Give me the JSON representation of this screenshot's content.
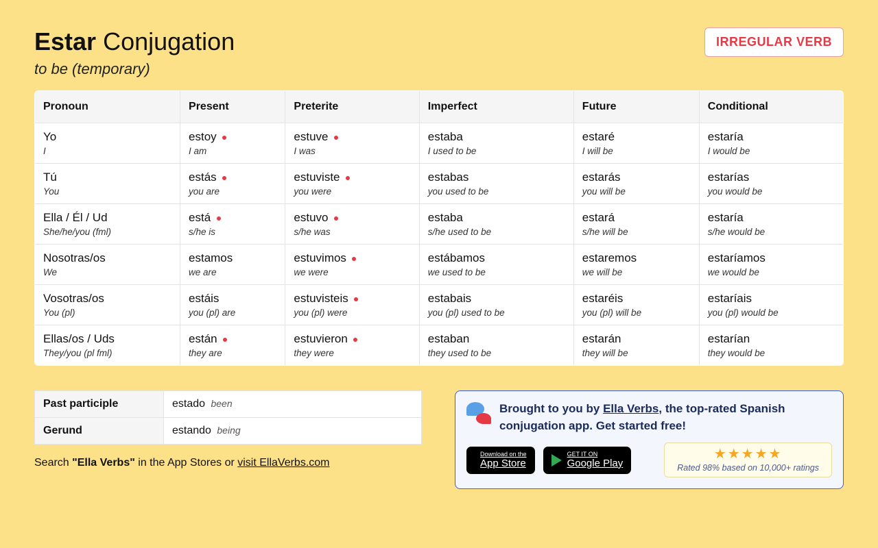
{
  "header": {
    "verb": "Estar",
    "suffix": " Conjugation",
    "subtitle": "to be (temporary)",
    "badge": "IRREGULAR VERB",
    "badge_color": "#e63946"
  },
  "columns": [
    "Pronoun",
    "Present",
    "Preterite",
    "Imperfect",
    "Future",
    "Conditional"
  ],
  "rows": [
    {
      "pronoun": {
        "sp": "Yo",
        "en": "I"
      },
      "cells": [
        {
          "sp": "estoy",
          "en": "I am",
          "irr": true
        },
        {
          "sp": "estuve",
          "en": "I was",
          "irr": true
        },
        {
          "sp": "estaba",
          "en": "I used to be",
          "irr": false
        },
        {
          "sp": "estaré",
          "en": "I will be",
          "irr": false
        },
        {
          "sp": "estaría",
          "en": "I would be",
          "irr": false
        }
      ]
    },
    {
      "pronoun": {
        "sp": "Tú",
        "en": "You"
      },
      "cells": [
        {
          "sp": "estás",
          "en": "you are",
          "irr": true
        },
        {
          "sp": "estuviste",
          "en": "you were",
          "irr": true
        },
        {
          "sp": "estabas",
          "en": "you used to be",
          "irr": false
        },
        {
          "sp": "estarás",
          "en": "you will be",
          "irr": false
        },
        {
          "sp": "estarías",
          "en": "you would be",
          "irr": false
        }
      ]
    },
    {
      "pronoun": {
        "sp": "Ella / Él / Ud",
        "en": "She/he/you (fml)"
      },
      "cells": [
        {
          "sp": "está",
          "en": "s/he is",
          "irr": true
        },
        {
          "sp": "estuvo",
          "en": "s/he was",
          "irr": true
        },
        {
          "sp": "estaba",
          "en": "s/he used to be",
          "irr": false
        },
        {
          "sp": "estará",
          "en": "s/he will be",
          "irr": false
        },
        {
          "sp": "estaría",
          "en": "s/he would be",
          "irr": false
        }
      ]
    },
    {
      "pronoun": {
        "sp": "Nosotras/os",
        "en": "We"
      },
      "cells": [
        {
          "sp": "estamos",
          "en": "we are",
          "irr": false
        },
        {
          "sp": "estuvimos",
          "en": "we were",
          "irr": true
        },
        {
          "sp": "estábamos",
          "en": "we used to be",
          "irr": false
        },
        {
          "sp": "estaremos",
          "en": "we will be",
          "irr": false
        },
        {
          "sp": "estaríamos",
          "en": "we would be",
          "irr": false
        }
      ]
    },
    {
      "pronoun": {
        "sp": "Vosotras/os",
        "en": "You (pl)"
      },
      "cells": [
        {
          "sp": "estáis",
          "en": "you (pl) are",
          "irr": false
        },
        {
          "sp": "estuvisteis",
          "en": "you (pl) were",
          "irr": true
        },
        {
          "sp": "estabais",
          "en": "you (pl) used to be",
          "irr": false
        },
        {
          "sp": "estaréis",
          "en": "you (pl) will be",
          "irr": false
        },
        {
          "sp": "estaríais",
          "en": "you (pl) would be",
          "irr": false
        }
      ]
    },
    {
      "pronoun": {
        "sp": "Ellas/os / Uds",
        "en": "They/you (pl fml)"
      },
      "cells": [
        {
          "sp": "están",
          "en": "they are",
          "irr": true
        },
        {
          "sp": "estuvieron",
          "en": "they were",
          "irr": true
        },
        {
          "sp": "estaban",
          "en": "they used to be",
          "irr": false
        },
        {
          "sp": "estarán",
          "en": "they will be",
          "irr": false
        },
        {
          "sp": "estarían",
          "en": "they would be",
          "irr": false
        }
      ]
    }
  ],
  "participles": [
    {
      "label": "Past participle",
      "sp": "estado",
      "en": "been"
    },
    {
      "label": "Gerund",
      "sp": "estando",
      "en": "being"
    }
  ],
  "search_line": {
    "prefix": "Search ",
    "bold": "\"Ella Verbs\"",
    "mid": " in the App Stores or ",
    "link": "visit EllaVerbs.com"
  },
  "promo": {
    "text_prefix": "Brought to you by ",
    "link": "Ella Verbs",
    "text_suffix": ", the top-rated Spanish conjugation app. Get started free!",
    "app_store": {
      "small": "Download on the",
      "big": "App Store"
    },
    "google_play": {
      "small": "GET IT ON",
      "big": "Google Play"
    },
    "stars": "★★★★★",
    "rating_text": "Rated 98% based on 10,000+ ratings"
  },
  "colors": {
    "bg": "#fce189",
    "irregular_dot": "#e63946",
    "promo_border": "#3b5fe0",
    "promo_bg": "#f3f6fd",
    "star": "#f5a623"
  }
}
